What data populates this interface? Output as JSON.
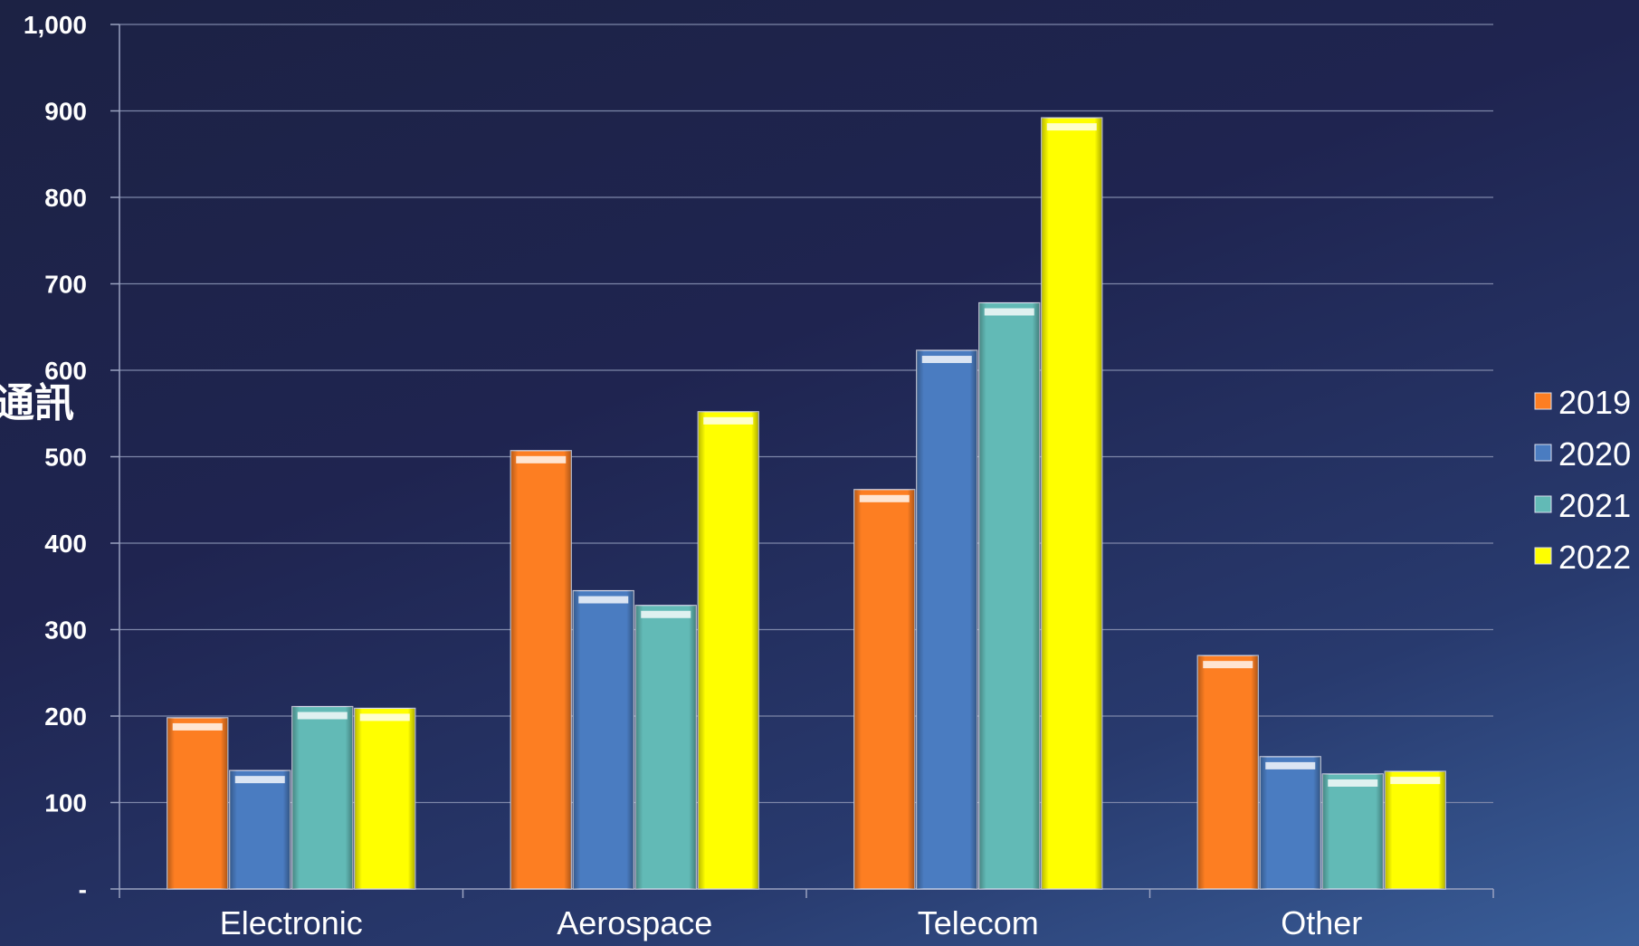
{
  "chart_data": {
    "type": "bar",
    "title": "",
    "xlabel": "",
    "ylabel": "通訊",
    "categories": [
      "Electronic",
      "Aerospace",
      "Telecom",
      "Other"
    ],
    "series": [
      {
        "name": "2019",
        "color": "#fd7e22",
        "values": [
          198,
          507,
          462,
          270
        ]
      },
      {
        "name": "2020",
        "color": "#4a7cc1",
        "values": [
          137,
          345,
          623,
          153
        ]
      },
      {
        "name": "2021",
        "color": "#62bab6",
        "values": [
          211,
          328,
          678,
          133
        ]
      },
      {
        "name": "2022",
        "color": "#ffff00",
        "values": [
          209,
          552,
          892,
          136
        ]
      }
    ],
    "ylim": [
      0,
      1000
    ],
    "yticks": [
      0,
      100,
      200,
      300,
      400,
      500,
      600,
      700,
      800,
      900,
      1000
    ],
    "ytick_labels": [
      "-",
      "100",
      "200",
      "300",
      "400",
      "500",
      "600",
      "700",
      "800",
      "900",
      "1,000"
    ],
    "grid": true,
    "legend_position": "right"
  }
}
